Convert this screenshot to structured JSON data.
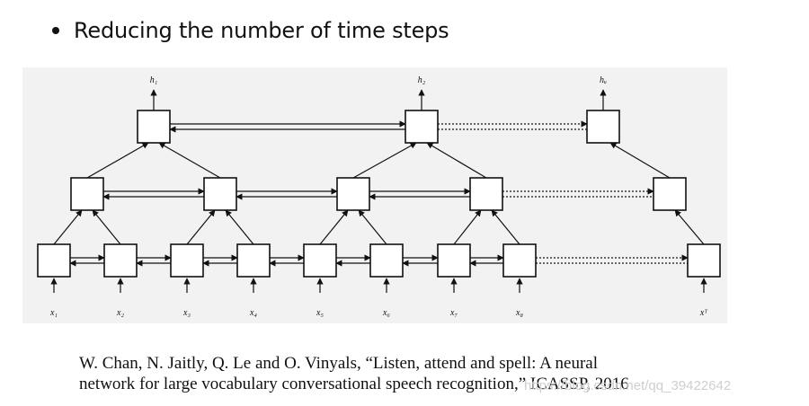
{
  "slide": {
    "bullet": "Reducing the number of time steps"
  },
  "diagram": {
    "outputs": [
      "h₁",
      "h₂",
      "hᵤ"
    ],
    "inputs": [
      "x₁",
      "x₂",
      "x₃",
      "x₄",
      "x₅",
      "x₆",
      "x₇",
      "x₈",
      "xᵀ"
    ]
  },
  "citation": {
    "line1": "W. Chan, N. Jaitly, Q. Le and O. Vinyals, “Listen, attend and spell: A neural",
    "line2": "network for large vocabulary conversational speech recognition,” ICASSP, 2016"
  },
  "watermark": "https://blog.csdn.net/qq_39422642",
  "colors": {
    "panel": "#f2f2f2",
    "stroke": "#111111",
    "watermark": "#cfcfcf"
  }
}
